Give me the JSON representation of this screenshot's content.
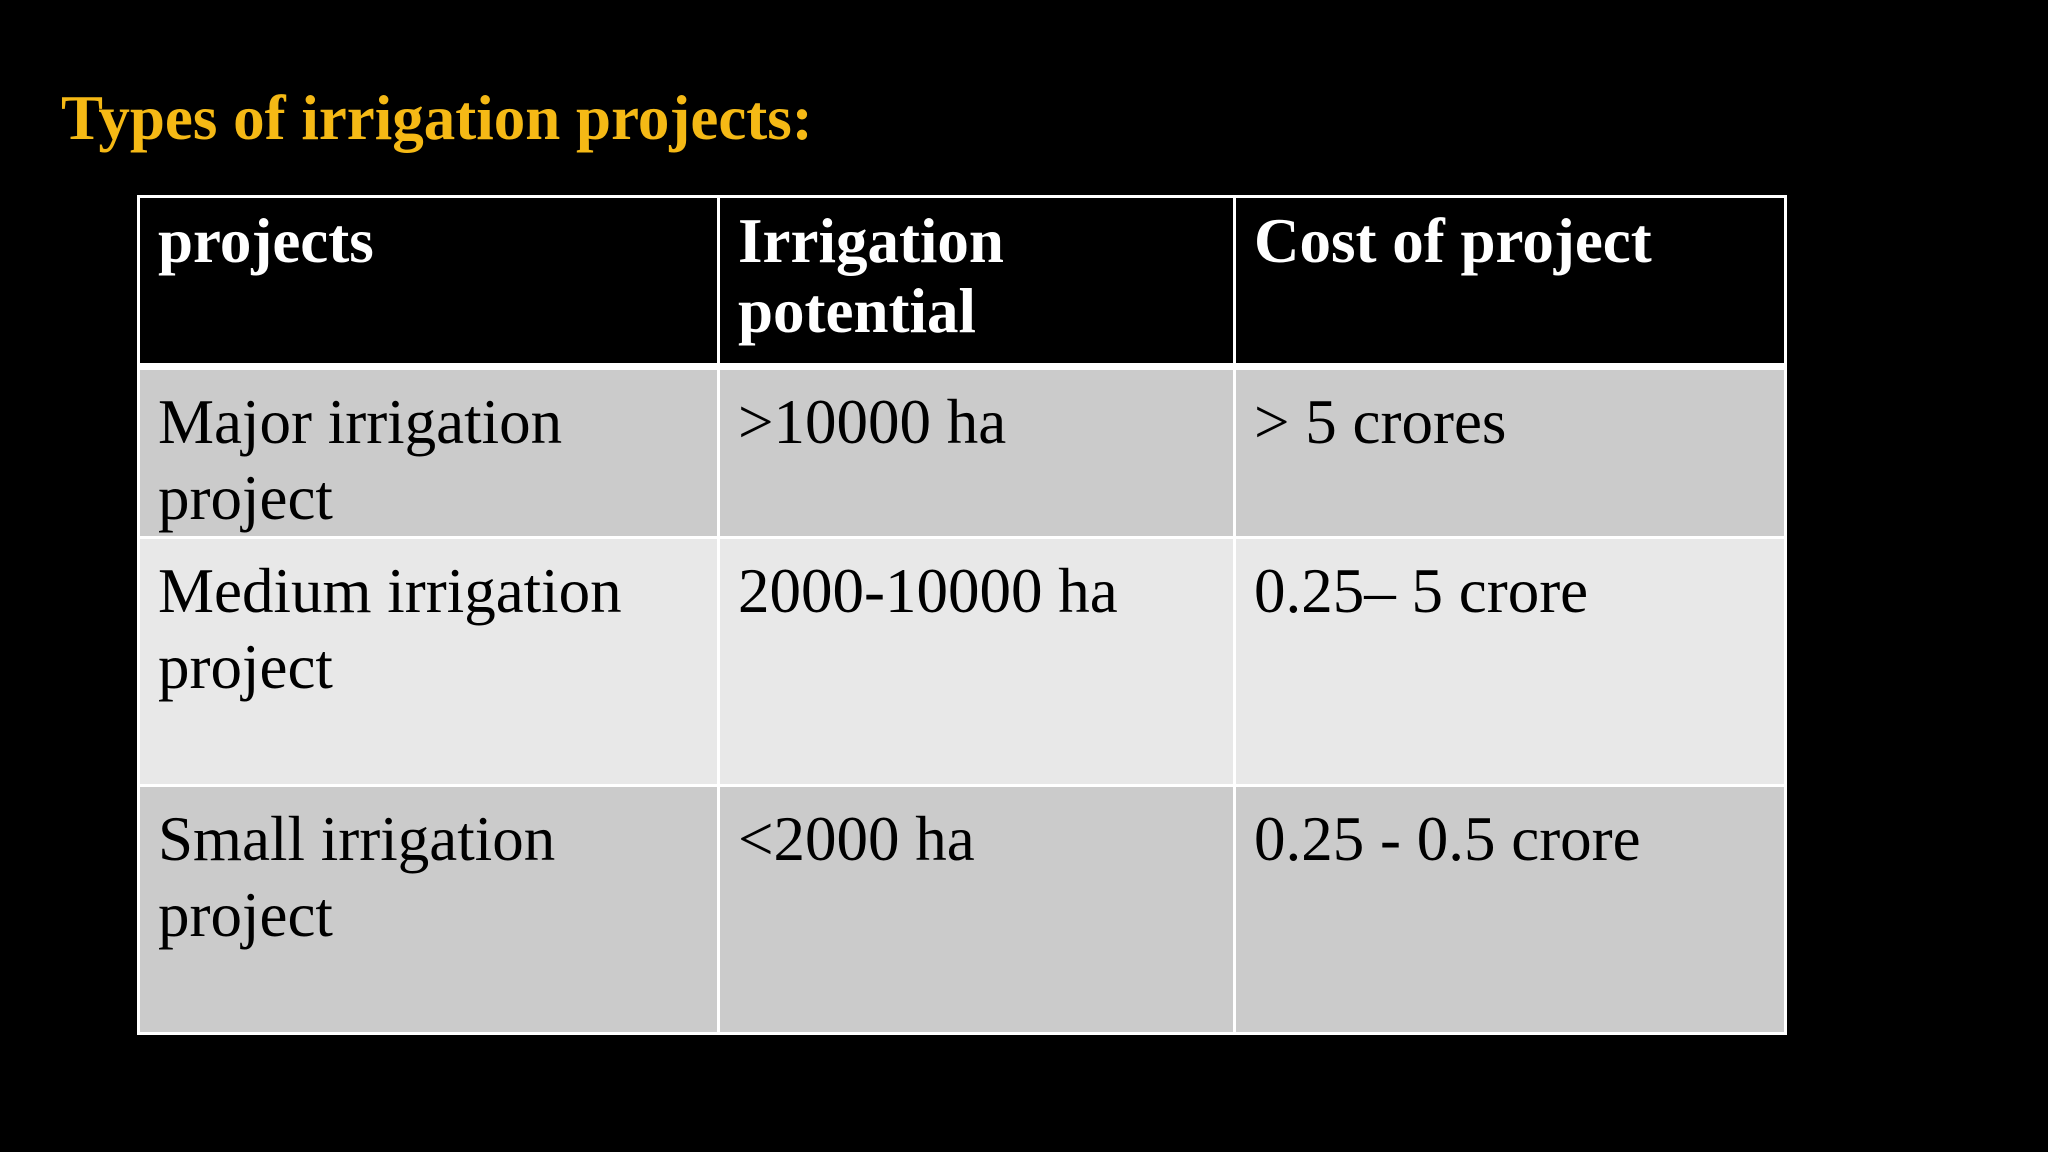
{
  "title": {
    "text": "Types of irrigation projects:",
    "color": "#f5b915"
  },
  "table": {
    "header_bg": "#000000",
    "row_colors": [
      "#cbcbcb",
      "#e8e8e8",
      "#cbcbcb"
    ],
    "headers": [
      "projects",
      "Irrigation potential",
      "Cost of project"
    ],
    "rows": [
      [
        "Major irrigation project",
        ">10000 ha",
        "> 5 crores"
      ],
      [
        "Medium irrigation project",
        "2000-10000 ha",
        "0.25– 5 crore"
      ],
      [
        "Small irrigation project",
        "<2000 ha",
        "0.25 - 0.5 crore"
      ]
    ]
  }
}
